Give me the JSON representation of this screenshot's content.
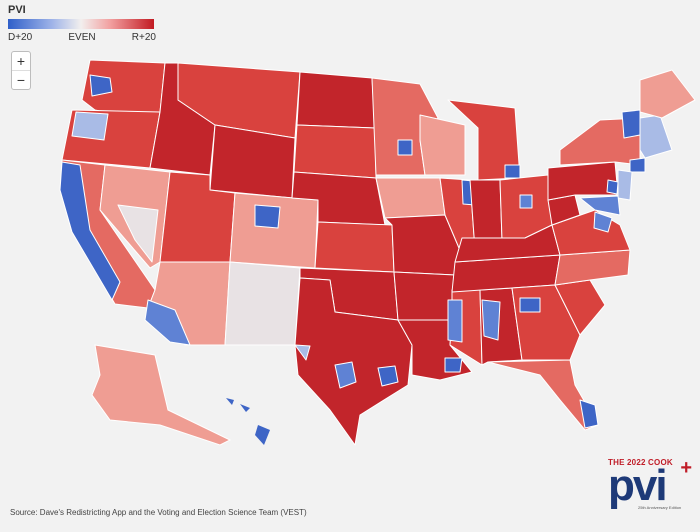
{
  "legend": {
    "title": "PVI",
    "left": "D+20",
    "mid": "EVEN",
    "right": "R+20",
    "colors": [
      "#2f5fc9",
      "#f2efee",
      "#c21a22"
    ]
  },
  "zoom": {
    "in": "+",
    "out": "−"
  },
  "source": "Source: Dave's Redistricting App and the Voting and Election Science Team (VEST)",
  "logo": {
    "top": "THE 2022 COOK",
    "main": "pvi",
    "sub": "25th Anniversary Edition",
    "plus": "+"
  },
  "colors": {
    "dark_red": "#c2252b",
    "red": "#d9423e",
    "mid_red": "#e46a62",
    "light_red": "#ef9d93",
    "pale": "#e8e2e4",
    "light_blue": "#a9bbe6",
    "blue": "#5f82d4",
    "dark_blue": "#3e65c6",
    "state_line": "#ffffff"
  }
}
